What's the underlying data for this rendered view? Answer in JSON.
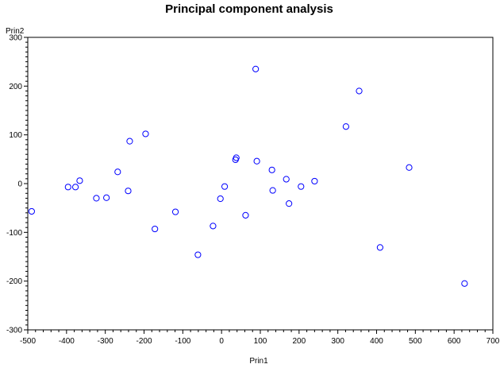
{
  "chart_data": {
    "type": "scatter",
    "title": "Principal component analysis",
    "xlabel": "Prin1",
    "ylabel": "Prin2",
    "xlim": [
      -500,
      700
    ],
    "ylim": [
      -300,
      300
    ],
    "x_ticks": [
      -500,
      -400,
      -300,
      -200,
      -100,
      0,
      100,
      200,
      300,
      400,
      500,
      600,
      700
    ],
    "y_ticks": [
      -300,
      -200,
      -100,
      0,
      100,
      200,
      300
    ],
    "grid": false,
    "marker": "circle",
    "marker_color": "#0000ff",
    "points": [
      {
        "x": -490,
        "y": -57
      },
      {
        "x": -396,
        "y": -7
      },
      {
        "x": -377,
        "y": -7
      },
      {
        "x": -366,
        "y": 6
      },
      {
        "x": -323,
        "y": -30
      },
      {
        "x": -297,
        "y": -29
      },
      {
        "x": -268,
        "y": 24
      },
      {
        "x": -241,
        "y": -15
      },
      {
        "x": -237,
        "y": 87
      },
      {
        "x": -196,
        "y": 102
      },
      {
        "x": -172,
        "y": -93
      },
      {
        "x": -119,
        "y": -58
      },
      {
        "x": -61,
        "y": -146
      },
      {
        "x": -22,
        "y": -87
      },
      {
        "x": -3,
        "y": -31
      },
      {
        "x": 8,
        "y": -6
      },
      {
        "x": 36,
        "y": 49
      },
      {
        "x": 38,
        "y": 53
      },
      {
        "x": 62,
        "y": -65
      },
      {
        "x": 88,
        "y": 235
      },
      {
        "x": 91,
        "y": 46
      },
      {
        "x": 130,
        "y": 28
      },
      {
        "x": 132,
        "y": -14
      },
      {
        "x": 167,
        "y": 9
      },
      {
        "x": 174,
        "y": -41
      },
      {
        "x": 205,
        "y": -6
      },
      {
        "x": 240,
        "y": 5
      },
      {
        "x": 321,
        "y": 117
      },
      {
        "x": 355,
        "y": 190
      },
      {
        "x": 409,
        "y": -131
      },
      {
        "x": 484,
        "y": 33
      },
      {
        "x": 627,
        "y": -205
      }
    ]
  }
}
